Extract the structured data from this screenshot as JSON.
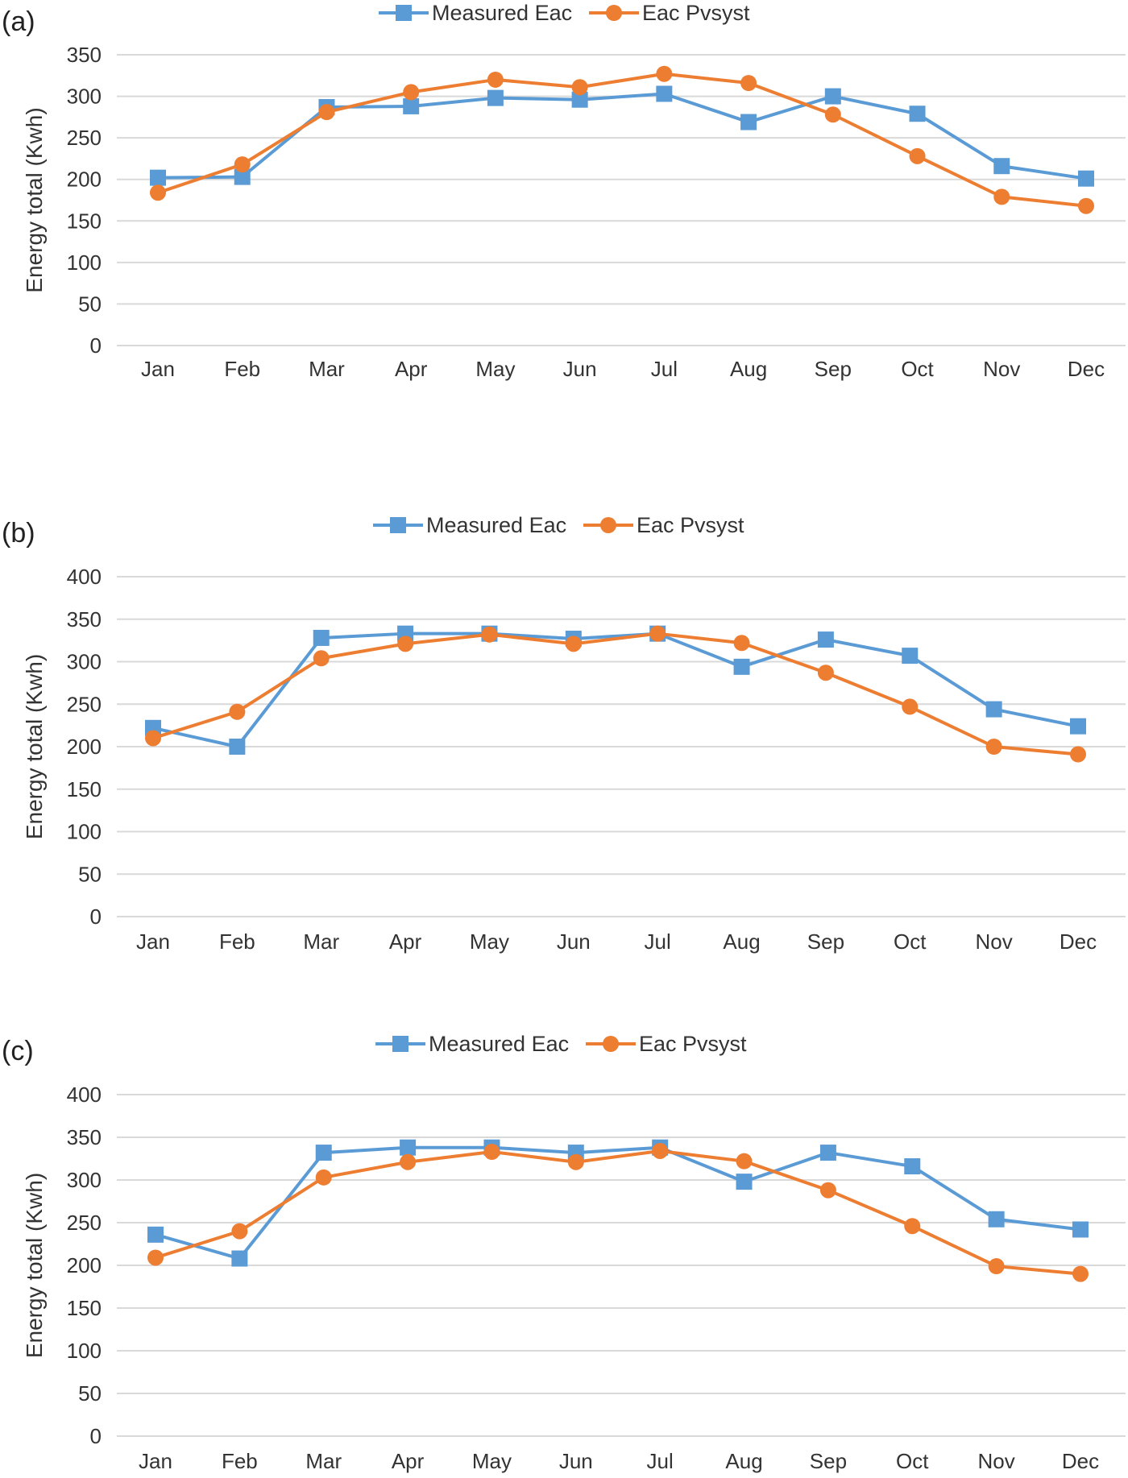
{
  "chart_data": [
    {
      "type": "line",
      "panel_label": "(a)",
      "title": "",
      "xlabel": "",
      "ylabel": "Energy total (Kwh)",
      "ylim": [
        0,
        350
      ],
      "yticks": [
        0,
        50,
        100,
        150,
        200,
        250,
        300,
        350
      ],
      "grid": true,
      "legend": "top-center",
      "categories": [
        "Jan",
        "Feb",
        "Mar",
        "Apr",
        "May",
        "Jun",
        "Jul",
        "Aug",
        "Sep",
        "Oct",
        "Nov",
        "Dec"
      ],
      "series": [
        {
          "name": "Measured Eac",
          "color": "#5b9bd5",
          "marker": "square",
          "values": [
            202,
            203,
            287,
            288,
            298,
            296,
            303,
            269,
            300,
            279,
            216,
            201
          ]
        },
        {
          "name": "Eac Pvsyst",
          "color": "#ed7d31",
          "marker": "circle",
          "values": [
            184,
            218,
            281,
            305,
            320,
            311,
            327,
            316,
            278,
            228,
            179,
            168
          ]
        }
      ]
    },
    {
      "type": "line",
      "panel_label": "(b)",
      "title": "",
      "xlabel": "",
      "ylabel": "Energy total (Kwh)",
      "ylim": [
        0,
        400
      ],
      "yticks": [
        0,
        50,
        100,
        150,
        200,
        250,
        300,
        350,
        400
      ],
      "grid": true,
      "legend": "top-center",
      "categories": [
        "Jan",
        "Feb",
        "Mar",
        "Apr",
        "May",
        "Jun",
        "Jul",
        "Aug",
        "Sep",
        "Oct",
        "Nov",
        "Dec"
      ],
      "series": [
        {
          "name": "Measured Eac",
          "color": "#5b9bd5",
          "marker": "square",
          "values": [
            222,
            200,
            328,
            333,
            333,
            327,
            333,
            294,
            326,
            307,
            244,
            224
          ]
        },
        {
          "name": "Eac Pvsyst",
          "color": "#ed7d31",
          "marker": "circle",
          "values": [
            210,
            241,
            304,
            321,
            332,
            321,
            333,
            322,
            287,
            247,
            200,
            191
          ]
        }
      ]
    },
    {
      "type": "line",
      "panel_label": "(c)",
      "title": "",
      "xlabel": "",
      "ylabel": "Energy total (Kwh)",
      "ylim": [
        0,
        400
      ],
      "yticks": [
        0,
        50,
        100,
        150,
        200,
        250,
        300,
        350,
        400
      ],
      "grid": true,
      "legend": "top-center",
      "categories": [
        "Jan",
        "Feb",
        "Mar",
        "Apr",
        "May",
        "Jun",
        "Jul",
        "Aug",
        "Sep",
        "Oct",
        "Nov",
        "Dec"
      ],
      "series": [
        {
          "name": "Measured Eac",
          "color": "#5b9bd5",
          "marker": "square",
          "values": [
            236,
            208,
            332,
            338,
            338,
            332,
            338,
            298,
            332,
            316,
            254,
            242
          ]
        },
        {
          "name": "Eac Pvsyst",
          "color": "#ed7d31",
          "marker": "circle",
          "values": [
            209,
            240,
            303,
            321,
            333,
            321,
            334,
            322,
            288,
            246,
            199,
            190
          ]
        }
      ]
    }
  ]
}
